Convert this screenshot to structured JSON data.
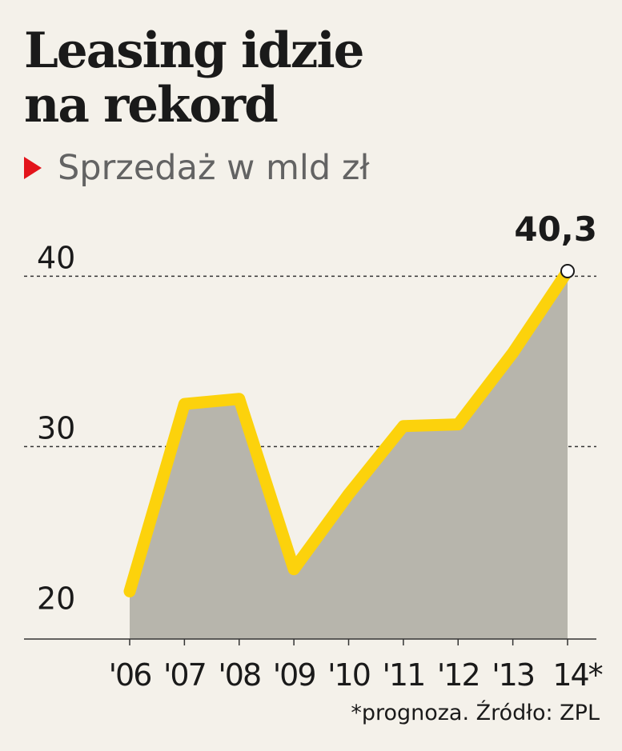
{
  "colors": {
    "background": "#f4f1ea",
    "line": "#fcd20c",
    "area": "#b7b5ac",
    "marker": "#e3141b",
    "text": "#1a1a1a",
    "subtitle": "#636363"
  },
  "chart_data": {
    "type": "area",
    "title_lines": [
      "Leasing idzie",
      "na rekord"
    ],
    "subtitle": "Sprzedaż w mld zł",
    "categories": [
      "'06",
      "'07",
      "'08",
      "'09",
      "'10",
      "'11",
      "'12",
      "'13",
      "14*"
    ],
    "series": [
      {
        "values": [
          21.5,
          32.5,
          32.8,
          22.8,
          27.2,
          31.2,
          31.3,
          35.5,
          40.3
        ]
      }
    ],
    "y_ticks": [
      "20",
      "30",
      "40"
    ],
    "y_tick_values": [
      20,
      30,
      40
    ],
    "ylim": [
      18.7,
      40.3
    ],
    "gridlines": [
      30,
      40
    ],
    "grid": "dashed, horizontal",
    "data_label": {
      "index": 8,
      "text": "40,3"
    },
    "source_note": "*prognoza. Źródło: ZPL"
  }
}
